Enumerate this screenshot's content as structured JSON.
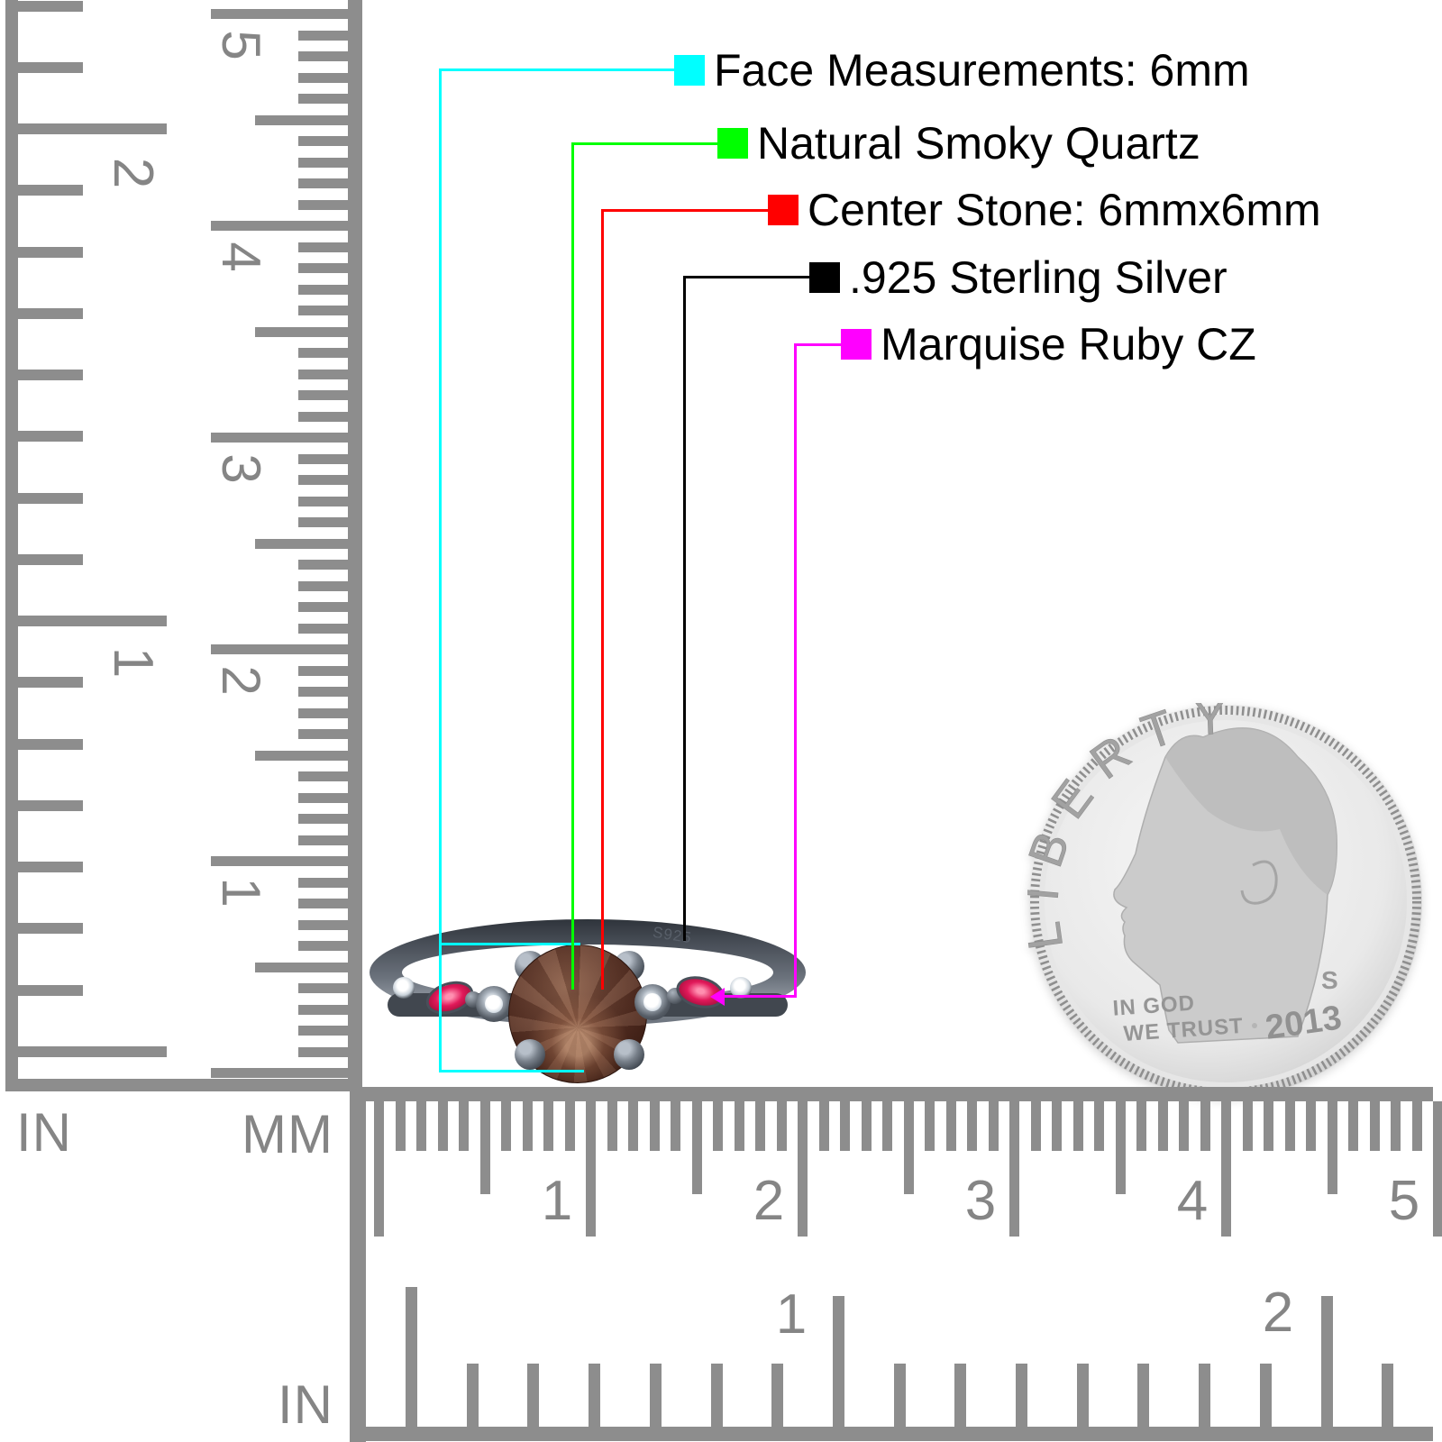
{
  "callouts": [
    {
      "id": "face-measurements",
      "color": "#00ffff",
      "label": "Face Measurements: 6mm"
    },
    {
      "id": "natural-smoky-quartz",
      "color": "#00ff00",
      "label": "Natural Smoky Quartz"
    },
    {
      "id": "center-stone",
      "color": "#ff0000",
      "label": "Center Stone: 6mmx6mm"
    },
    {
      "id": "sterling-silver",
      "color": "#000000",
      "label": ".925 Sterling Silver"
    },
    {
      "id": "marquise-ruby-cz",
      "color": "#ff00ff",
      "label": "Marquise Ruby CZ"
    }
  ],
  "rulers": {
    "left": {
      "in_label": "IN",
      "mm_label": "MM",
      "cm_numbers": [
        "5",
        "4",
        "3",
        "2",
        "1"
      ],
      "inch_numbers": [
        "2",
        "1"
      ]
    },
    "bottom": {
      "mm_numbers": [
        "1",
        "2",
        "3",
        "4",
        "5"
      ],
      "inch_numbers": [
        "1",
        "2"
      ],
      "in_label": "IN"
    }
  },
  "ring": {
    "engraving": "S925"
  },
  "coin": {
    "legend": "LIBERTY",
    "motto_line1": "IN GOD",
    "motto_line2": "WE TRUST",
    "mint_mark": "S",
    "year": "2013"
  },
  "palette": {
    "ruler_gray": "#8d8d8d",
    "label_text": "#000000",
    "band_metal": "#4e545c",
    "center_stone_brown": "#5d3c2e",
    "ruby_red": "#e1195a",
    "coin_silver": "#d9d9d9"
  }
}
